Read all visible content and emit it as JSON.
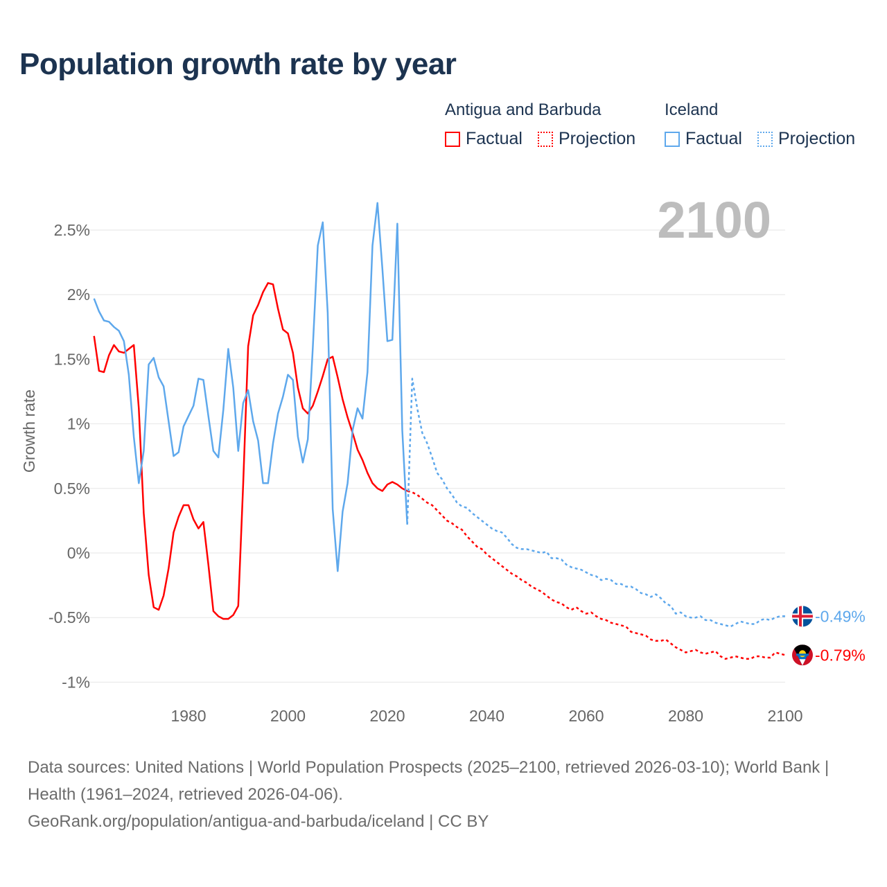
{
  "title": "Population growth rate by year",
  "legend": {
    "groups": [
      {
        "name": "Antigua and Barbuda",
        "factual": "Factual",
        "projection": "Projection",
        "color": "#ff0000"
      },
      {
        "name": "Iceland",
        "factual": "Factual",
        "projection": "Projection",
        "color": "#5ea8ec"
      }
    ]
  },
  "chart_data": {
    "type": "line",
    "title": "Population growth rate by year",
    "xlabel": "",
    "ylabel": "Growth rate",
    "xlim": [
      1961,
      2100
    ],
    "ylim": [
      -1.1,
      2.85
    ],
    "x_ticks": [
      1980,
      2000,
      2020,
      2040,
      2060,
      2080,
      2100
    ],
    "y_ticks": [
      -1,
      -0.5,
      0,
      0.5,
      1,
      1.5,
      2,
      2.5
    ],
    "y_tick_labels": [
      "-1%",
      "-0.5%",
      "0%",
      "0.5%",
      "1%",
      "1.5%",
      "2%",
      "2.5%"
    ],
    "grid": true,
    "year_label": "2100",
    "series": [
      {
        "name": "Antigua and Barbuda – Factual",
        "color": "#ff0000",
        "style": "solid",
        "start": 1961,
        "values": [
          1.68,
          1.41,
          1.4,
          1.53,
          1.61,
          1.56,
          1.55,
          1.58,
          1.61,
          1.12,
          0.31,
          -0.17,
          -0.42,
          -0.44,
          -0.33,
          -0.12,
          0.16,
          0.28,
          0.37,
          0.37,
          0.26,
          0.19,
          0.24,
          -0.09,
          -0.45,
          -0.49,
          -0.51,
          -0.51,
          -0.48,
          -0.41,
          0.53,
          1.6,
          1.84,
          1.92,
          2.02,
          2.09,
          2.08,
          1.89,
          1.73,
          1.7,
          1.55,
          1.28,
          1.12,
          1.08,
          1.14,
          1.25,
          1.37,
          1.5,
          1.52,
          1.36,
          1.19,
          1.05,
          0.93,
          0.8,
          0.72,
          0.62,
          0.54,
          0.5,
          0.48,
          0.53,
          0.55,
          0.53,
          0.5,
          0.48
        ]
      },
      {
        "name": "Antigua and Barbuda – Projection",
        "color": "#ff0000",
        "style": "dotted",
        "start": 2024,
        "values": [
          0.48,
          0.47,
          0.45,
          0.42,
          0.39,
          0.37,
          0.33,
          0.29,
          0.25,
          0.23,
          0.2,
          0.18,
          0.13,
          0.09,
          0.05,
          0.03,
          -0.01,
          -0.04,
          -0.07,
          -0.1,
          -0.13,
          -0.16,
          -0.18,
          -0.21,
          -0.23,
          -0.26,
          -0.28,
          -0.3,
          -0.33,
          -0.36,
          -0.38,
          -0.39,
          -0.42,
          -0.44,
          -0.42,
          -0.45,
          -0.47,
          -0.46,
          -0.49,
          -0.51,
          -0.52,
          -0.54,
          -0.55,
          -0.56,
          -0.57,
          -0.61,
          -0.62,
          -0.63,
          -0.64,
          -0.67,
          -0.68,
          -0.68,
          -0.67,
          -0.7,
          -0.73,
          -0.75,
          -0.77,
          -0.76,
          -0.75,
          -0.77,
          -0.78,
          -0.77,
          -0.76,
          -0.8,
          -0.82,
          -0.81,
          -0.8,
          -0.81,
          -0.82,
          -0.82,
          -0.8,
          -0.8,
          -0.81,
          -0.81,
          -0.77,
          -0.78,
          -0.79
        ]
      },
      {
        "name": "Iceland – Factual",
        "color": "#5ea8ec",
        "style": "solid",
        "start": 1961,
        "values": [
          1.97,
          1.87,
          1.8,
          1.79,
          1.75,
          1.72,
          1.64,
          1.38,
          0.9,
          0.54,
          0.79,
          1.46,
          1.51,
          1.36,
          1.29,
          1.02,
          0.75,
          0.78,
          0.98,
          1.06,
          1.14,
          1.35,
          1.34,
          1.06,
          0.79,
          0.74,
          1.11,
          1.58,
          1.28,
          0.79,
          1.16,
          1.26,
          1.02,
          0.87,
          0.54,
          0.54,
          0.85,
          1.08,
          1.21,
          1.38,
          1.34,
          0.9,
          0.7,
          0.88,
          1.59,
          2.38,
          2.56,
          1.86,
          0.34,
          -0.14,
          0.32,
          0.54,
          0.95,
          1.12,
          1.04,
          1.4,
          2.38,
          2.71,
          2.2,
          1.64,
          1.65,
          2.55,
          0.95,
          0.22
        ]
      },
      {
        "name": "Iceland – Projection",
        "color": "#5ea8ec",
        "style": "dotted",
        "start": 2024,
        "values": [
          0.22,
          1.35,
          1.12,
          0.93,
          0.85,
          0.74,
          0.62,
          0.57,
          0.5,
          0.45,
          0.39,
          0.36,
          0.35,
          0.31,
          0.28,
          0.25,
          0.22,
          0.19,
          0.17,
          0.16,
          0.12,
          0.07,
          0.04,
          0.03,
          0.03,
          0.02,
          0.01,
          0.0,
          0.01,
          -0.04,
          -0.04,
          -0.05,
          -0.09,
          -0.11,
          -0.12,
          -0.13,
          -0.15,
          -0.17,
          -0.18,
          -0.21,
          -0.2,
          -0.21,
          -0.24,
          -0.24,
          -0.26,
          -0.26,
          -0.28,
          -0.31,
          -0.32,
          -0.34,
          -0.32,
          -0.35,
          -0.39,
          -0.41,
          -0.47,
          -0.46,
          -0.49,
          -0.5,
          -0.5,
          -0.49,
          -0.52,
          -0.52,
          -0.54,
          -0.55,
          -0.56,
          -0.57,
          -0.55,
          -0.53,
          -0.54,
          -0.55,
          -0.55,
          -0.52,
          -0.51,
          -0.52,
          -0.5,
          -0.49,
          -0.49
        ]
      }
    ],
    "end_labels": [
      {
        "country": "Iceland",
        "text": "-0.49%",
        "value": -0.49,
        "color": "#5ea8ec"
      },
      {
        "country": "Antigua and Barbuda",
        "text": "-0.79%",
        "value": -0.79,
        "color": "#ff0000"
      }
    ]
  },
  "footer": {
    "line1": "Data sources: United Nations | World Population Prospects (2025–2100, retrieved 2026-03-10); World Bank | Health (1961–2024, retrieved 2026-04-06).",
    "line2": "GeoRank.org/population/antigua-and-barbuda/iceland | CC BY"
  }
}
